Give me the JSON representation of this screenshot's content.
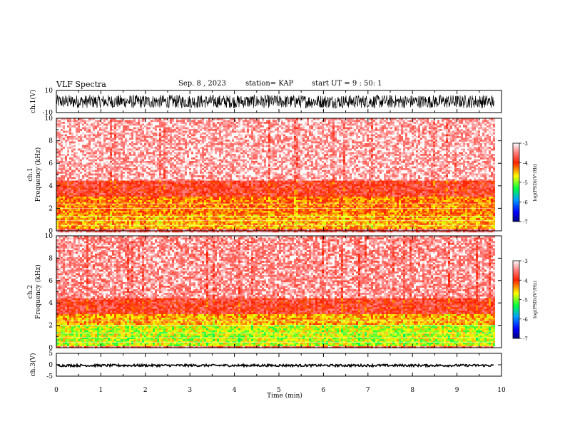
{
  "header": {
    "title": "VLF Spectra",
    "date": "Sep. 8 , 2023",
    "station": "station= KAP",
    "start": "start UT =  9 : 50: 1"
  },
  "chart_data": [
    {
      "type": "line",
      "panel": "waveform-ch1",
      "ylabel": "ch.1(V)",
      "ylim": [
        -10,
        10
      ],
      "yticks": [
        "10",
        "-10"
      ],
      "xlim": [
        0,
        10
      ],
      "approx_amplitude_range_V": [
        -6,
        6
      ],
      "color": "#000000"
    },
    {
      "type": "heatmap",
      "panel": "spectrogram-ch1",
      "ylabel": "ch.1\nFrequency (kHz)",
      "ylim": [
        0,
        10
      ],
      "yticks": [
        "0",
        "2",
        "4",
        "6",
        "8",
        "10"
      ],
      "xlim": [
        0,
        10
      ],
      "bands": [
        {
          "f_range_kHz": [
            0.2,
            1.4
          ],
          "log_psd": -4.6
        },
        {
          "f_range_kHz": [
            1.4,
            3.0
          ],
          "log_psd": -4.4
        },
        {
          "f_range_kHz": [
            3.0,
            4.5
          ],
          "log_psd": -3.9
        },
        {
          "f_range_kHz": [
            4.5,
            10.0
          ],
          "log_psd": -3.3
        }
      ],
      "colorbar": {
        "label": "log(PSD)(V²/Hz)",
        "range": [
          -7,
          -3
        ],
        "ticks": [
          "-3",
          "-4",
          "-5",
          "-6",
          "-7"
        ]
      }
    },
    {
      "type": "heatmap",
      "panel": "spectrogram-ch2",
      "ylabel": "ch.2\nFrequency (kHz)",
      "ylim": [
        0,
        10
      ],
      "yticks": [
        "0",
        "2",
        "4",
        "6",
        "8",
        "10"
      ],
      "xlim": [
        0,
        10
      ],
      "bands": [
        {
          "f_range_kHz": [
            0.2,
            2.0
          ],
          "log_psd": -5.0
        },
        {
          "f_range_kHz": [
            2.0,
            3.0
          ],
          "log_psd": -4.6
        },
        {
          "f_range_kHz": [
            3.0,
            4.5
          ],
          "log_psd": -3.9
        },
        {
          "f_range_kHz": [
            4.5,
            10.0
          ],
          "log_psd": -3.4
        }
      ],
      "colorbar": {
        "label": "log(PSD)(V²/Hz)",
        "range": [
          -7,
          -3
        ],
        "ticks": [
          "-3",
          "-4",
          "-5",
          "-6",
          "-7"
        ]
      }
    },
    {
      "type": "line",
      "panel": "waveform-ch3",
      "ylabel": "ch.3(V)",
      "ylim": [
        -5,
        5
      ],
      "yticks": [
        "5",
        "0",
        "-5"
      ],
      "xlim": [
        0,
        10
      ],
      "approx_amplitude_range_V": [
        -0.8,
        0.2
      ],
      "color": "#000000"
    }
  ],
  "xaxis": {
    "label": "Time (min)",
    "ticks": [
      "0",
      "1",
      "2",
      "3",
      "4",
      "5",
      "6",
      "7",
      "8",
      "9",
      "10"
    ],
    "data_end_min": 9.83
  }
}
